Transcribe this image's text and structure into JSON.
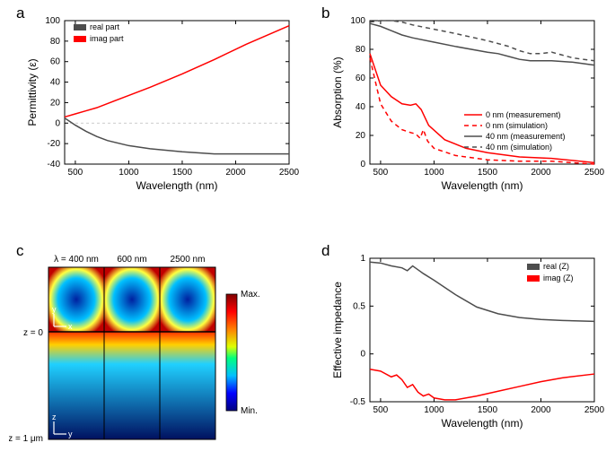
{
  "panels": {
    "a": {
      "label": "a",
      "xlabel": "Wavelength (nm)",
      "ylabel": "Permittivity (ε)",
      "xlim": [
        400,
        2500
      ],
      "ylim": [
        -40,
        100
      ],
      "xtick_step": 500,
      "xticks": [
        500,
        1000,
        1500,
        2000,
        2500
      ],
      "yticks": [
        -40,
        -20,
        0,
        20,
        40,
        60,
        80,
        100
      ],
      "series": {
        "real": {
          "label": "real part",
          "color": "#4d4d4d",
          "linewidth": 1.5,
          "points": [
            [
              400,
              5
            ],
            [
              500,
              -2
            ],
            [
              600,
              -8
            ],
            [
              700,
              -13
            ],
            [
              800,
              -17
            ],
            [
              1000,
              -22
            ],
            [
              1200,
              -25
            ],
            [
              1500,
              -28
            ],
            [
              1800,
              -30
            ],
            [
              2100,
              -30
            ],
            [
              2500,
              -30
            ]
          ]
        },
        "imag": {
          "label": "imag part",
          "color": "#ff0000",
          "linewidth": 1.5,
          "points": [
            [
              400,
              6
            ],
            [
              500,
              9
            ],
            [
              600,
              12
            ],
            [
              700,
              15
            ],
            [
              800,
              19
            ],
            [
              1000,
              27
            ],
            [
              1200,
              35
            ],
            [
              1500,
              48
            ],
            [
              1800,
              62
            ],
            [
              2100,
              77
            ],
            [
              2500,
              95
            ]
          ]
        }
      },
      "zero_line_color": "#bbbbbb",
      "legend_pos": "top-left"
    },
    "b": {
      "label": "b",
      "xlabel": "Wavelength (nm)",
      "ylabel": "Absorption (%)",
      "xlim": [
        400,
        2500
      ],
      "ylim": [
        0,
        100
      ],
      "xticks": [
        500,
        1000,
        1500,
        2000,
        2500
      ],
      "yticks": [
        0,
        20,
        40,
        60,
        80,
        100
      ],
      "series": {
        "s0m": {
          "label": "0 nm (measurement)",
          "color": "#ff0000",
          "dash": "none",
          "linewidth": 1.5,
          "points": [
            [
              400,
              77
            ],
            [
              500,
              55
            ],
            [
              600,
              47
            ],
            [
              700,
              42
            ],
            [
              780,
              41
            ],
            [
              830,
              42
            ],
            [
              880,
              38
            ],
            [
              950,
              27
            ],
            [
              1100,
              17
            ],
            [
              1300,
              11
            ],
            [
              1500,
              8
            ],
            [
              1800,
              5
            ],
            [
              2100,
              4
            ],
            [
              2500,
              1
            ]
          ]
        },
        "s0s": {
          "label": "0 nm (simulation)",
          "color": "#ff0000",
          "dash": "5,4",
          "linewidth": 1.5,
          "points": [
            [
              400,
              74
            ],
            [
              500,
              42
            ],
            [
              600,
              30
            ],
            [
              700,
              24
            ],
            [
              780,
              22
            ],
            [
              830,
              21
            ],
            [
              870,
              18
            ],
            [
              900,
              24
            ],
            [
              940,
              16
            ],
            [
              1000,
              11
            ],
            [
              1200,
              6
            ],
            [
              1500,
              3
            ],
            [
              1800,
              2
            ],
            [
              2100,
              2
            ],
            [
              2500,
              0
            ]
          ]
        },
        "s40m": {
          "label": "40 nm (measurement)",
          "color": "#4d4d4d",
          "dash": "none",
          "linewidth": 1.5,
          "points": [
            [
              400,
              98
            ],
            [
              500,
              96
            ],
            [
              600,
              93
            ],
            [
              700,
              90
            ],
            [
              800,
              88
            ],
            [
              1000,
              85
            ],
            [
              1200,
              82
            ],
            [
              1500,
              78
            ],
            [
              1600,
              77
            ],
            [
              1700,
              75
            ],
            [
              1800,
              73
            ],
            [
              1900,
              72
            ],
            [
              2000,
              72
            ],
            [
              2100,
              72
            ],
            [
              2300,
              71
            ],
            [
              2500,
              69
            ]
          ]
        },
        "s40s": {
          "label": "40 nm (simulation)",
          "color": "#4d4d4d",
          "dash": "5,4",
          "linewidth": 1.5,
          "points": [
            [
              400,
              99
            ],
            [
              500,
              100
            ],
            [
              600,
              100
            ],
            [
              700,
              99
            ],
            [
              800,
              97
            ],
            [
              1000,
              94
            ],
            [
              1200,
              91
            ],
            [
              1500,
              86
            ],
            [
              1700,
              82
            ],
            [
              1800,
              79
            ],
            [
              1900,
              77
            ],
            [
              2000,
              77
            ],
            [
              2100,
              78
            ],
            [
              2200,
              76
            ],
            [
              2300,
              74
            ],
            [
              2500,
              72
            ]
          ]
        }
      },
      "legend_pos": "bottom-center"
    },
    "c": {
      "label": "c",
      "column_headers": [
        "λ = 400 nm",
        "600 nm",
        "2500 nm"
      ],
      "left_labels": [
        "z = 0",
        "z = 1 μm"
      ],
      "axis_arrows": {
        "top": {
          "h": "x",
          "v": "y"
        },
        "bottom": {
          "h": "y",
          "v": "z"
        }
      },
      "colorbar": {
        "max_label": "Max.",
        "min_label": "Min.",
        "stops": [
          [
            0.0,
            "#00007f"
          ],
          [
            0.15,
            "#0000ff"
          ],
          [
            0.3,
            "#00bfff"
          ],
          [
            0.45,
            "#00ff7f"
          ],
          [
            0.55,
            "#dfff00"
          ],
          [
            0.7,
            "#ff7f00"
          ],
          [
            0.85,
            "#ff0000"
          ],
          [
            1.0,
            "#7f0000"
          ]
        ]
      }
    },
    "d": {
      "label": "d",
      "xlabel": "Wavelength (nm)",
      "ylabel": "Effective impedance",
      "xlim": [
        400,
        2500
      ],
      "ylim": [
        -0.5,
        1.0
      ],
      "xticks": [
        500,
        1000,
        1500,
        2000,
        2500
      ],
      "yticks": [
        -0.5,
        0.0,
        0.5,
        1.0
      ],
      "series": {
        "realZ": {
          "label": "real (Z)",
          "color": "#4d4d4d",
          "linewidth": 1.5,
          "points": [
            [
              400,
              0.96
            ],
            [
              500,
              0.95
            ],
            [
              600,
              0.92
            ],
            [
              700,
              0.9
            ],
            [
              750,
              0.87
            ],
            [
              800,
              0.92
            ],
            [
              850,
              0.88
            ],
            [
              900,
              0.84
            ],
            [
              1000,
              0.77
            ],
            [
              1200,
              0.62
            ],
            [
              1400,
              0.49
            ],
            [
              1600,
              0.42
            ],
            [
              1800,
              0.38
            ],
            [
              2000,
              0.36
            ],
            [
              2200,
              0.35
            ],
            [
              2500,
              0.34
            ]
          ]
        },
        "imagZ": {
          "label": "imag (Z)",
          "color": "#ff0000",
          "linewidth": 1.5,
          "points": [
            [
              400,
              -0.16
            ],
            [
              500,
              -0.18
            ],
            [
              600,
              -0.24
            ],
            [
              650,
              -0.22
            ],
            [
              700,
              -0.27
            ],
            [
              750,
              -0.35
            ],
            [
              800,
              -0.32
            ],
            [
              850,
              -0.4
            ],
            [
              900,
              -0.44
            ],
            [
              950,
              -0.42
            ],
            [
              1000,
              -0.46
            ],
            [
              1100,
              -0.48
            ],
            [
              1200,
              -0.48
            ],
            [
              1400,
              -0.44
            ],
            [
              1600,
              -0.39
            ],
            [
              1800,
              -0.34
            ],
            [
              2000,
              -0.29
            ],
            [
              2200,
              -0.25
            ],
            [
              2500,
              -0.21
            ]
          ]
        }
      },
      "legend_pos": "top-right"
    }
  },
  "global": {
    "background": "#ffffff",
    "axis_color": "#000000",
    "axis_fontsize": 12,
    "tick_fontsize": 10,
    "legend_fontsize": 9,
    "panel_label_fontsize": 17
  }
}
